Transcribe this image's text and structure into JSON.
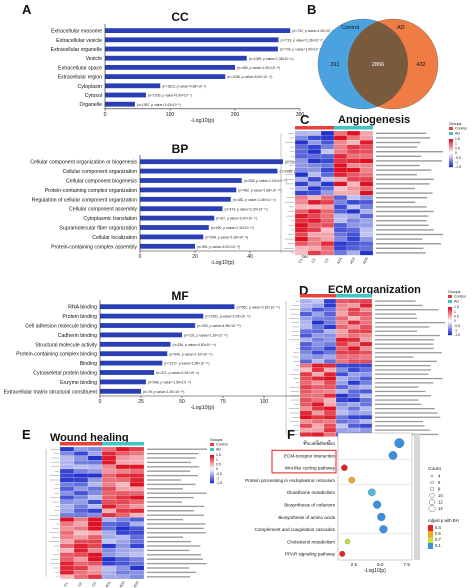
{
  "panels": {
    "A": {
      "letter": "A"
    },
    "B": {
      "letter": "B"
    },
    "C": {
      "letter": "C"
    },
    "D": {
      "letter": "D"
    },
    "E": {
      "letter": "E"
    },
    "F": {
      "letter": "F"
    }
  },
  "chart_data": [
    {
      "type": "bar",
      "id": "cc",
      "title": "CC",
      "xlabel": "-Log10(p)",
      "xlim": [
        0,
        300
      ],
      "xticks": [
        0,
        100,
        200,
        300
      ],
      "categories": [
        "Extracellular exosome",
        "Extracellular vesicle",
        "Extracellular organelle",
        "Vesicle",
        "Extracellular space",
        "Extracellular region",
        "Cytoplasm",
        "Cytosol",
        "Organelle"
      ],
      "values": [
        285,
        267,
        266,
        218,
        200,
        185,
        85,
        63,
        46
      ],
      "annotations": [
        "(n=732, p value=1.00×10⁻²⁸)",
        "(n=733, p value=1.28×10⁻²⁷)",
        "(n=733, p value=1.00×10⁻²⁶)",
        "(n=1069, p value=1.38×10⁻²¹)",
        "(n=466, p value=1.00×10⁻²⁰)",
        "(n=1036, p value=9.00×10⁻¹⁹)",
        "(n=1813, p value=4.38×10⁻⁹)",
        "(n=1039, p value=6.00×10⁻⁷)",
        "(n=1957, p value=3.43×10⁻⁵)"
      ]
    },
    {
      "type": "bar",
      "id": "bp",
      "title": "BP",
      "xlabel": "-Log10(p)",
      "xlim": [
        0,
        60
      ],
      "xticks": [
        0,
        20,
        40,
        60
      ],
      "categories": [
        "Cellular component organization or biogenesis",
        "Cellular component organization",
        "Cellular component biogenesis",
        "Protein-containing complex organization",
        "Regulation of cellular component organization",
        "Cellular component assembly",
        "Cytoplasmic translation",
        "Supramolecular fiber organization",
        "Cellular localization",
        "Protein-containing complex assembly"
      ],
      "values": [
        52,
        50,
        37,
        35,
        33,
        30,
        27,
        25,
        23,
        20
      ],
      "annotations": [
        "(n=1025, p value=4.20×10⁻⁵²)",
        "(n=1088, p value=1.40×10⁻⁵⁰)",
        "(n=535, p value=1.20×10⁻³⁷)",
        "(n=462, p value=1.86×10⁻³⁵)",
        "(n=482, p value=1.36×10⁻³³)",
        "(n=474, p value=2.20×10⁻³⁰)",
        "(n=87, p value=6.97×10⁻²⁷)",
        "(n=260, p value=2.30×10⁻²⁵)",
        "(n=548, p value=1.36×10⁻²³)",
        "(n=391, p value=2.02×10⁻²⁰)"
      ]
    },
    {
      "type": "bar",
      "id": "mf",
      "title": "MF",
      "xlabel": "-Log10(p)",
      "xlim": [
        0,
        125
      ],
      "xticks": [
        0,
        25,
        50,
        75,
        100,
        125
      ],
      "categories": [
        "RNA binding",
        "Protein binding",
        "Cell adhesion molecule binding",
        "Cadherin binding",
        "Structural molecule activity",
        "Protein-containing complex binding",
        "Binding",
        "Cytoskeletal protein binding",
        "Enzyme binding",
        "Extracellular matrix structural constituent"
      ],
      "values": [
        82,
        63,
        58,
        50,
        43,
        41,
        38,
        33,
        28,
        25
      ],
      "annotations": [
        "(n=562, p value=2.82×10⁻⁸²)",
        "(n=1951, p value=2.34×10⁻⁶³)",
        "(n=330, p value=4.96×10⁻⁵⁸)",
        "(n=231, p value=1.16×10⁻⁵⁰)",
        "(n=336, p value=4.50×10⁻⁴³)",
        "(n=540, p value=1.10×10⁻⁴¹)",
        "(n=1017, p value=1.58×10⁻³⁸)",
        "(n=371, p value=2.39×10⁻³³)",
        "(n=548, p value=1.50×10⁻²⁸)",
        "(n=76, p value=1.30×10⁻²⁵)"
      ]
    },
    {
      "type": "venn",
      "id": "venn",
      "sets": [
        {
          "name": "Control",
          "only": 311,
          "color": "#4aa3df"
        },
        {
          "name": "AD",
          "only": 432,
          "color": "#ef7c45"
        }
      ],
      "intersection": 2866
    },
    {
      "type": "heatmap",
      "id": "angiogenesis",
      "title": "Angiogenesis",
      "rows": 27,
      "columns": [
        "C1",
        "C2",
        "C3",
        "AD1",
        "AD2",
        "AD3"
      ],
      "legend_title": "Groups",
      "groups": [
        "Control",
        "AD"
      ],
      "color_scale": {
        "low": "#2233cc",
        "mid": "#ffffff",
        "high": "#dd1122",
        "ticks": [
          "1.5",
          "1",
          "0.5",
          "0",
          "-0.5",
          "-1",
          "-1.5"
        ]
      }
    },
    {
      "type": "heatmap",
      "id": "ecm",
      "title": "ECM organization",
      "rows": 32,
      "columns": [
        "C1",
        "C2",
        "C3",
        "AD1",
        "AD2",
        "AD3"
      ],
      "legend_title": "Groups",
      "groups": [
        "Control",
        "AD"
      ],
      "color_scale": {
        "low": "#2233cc",
        "mid": "#ffffff",
        "high": "#dd1122",
        "ticks": [
          "1.5",
          "1",
          "0.5",
          "0",
          "-0.5",
          "-1",
          "-1.5"
        ]
      }
    },
    {
      "type": "heatmap",
      "id": "wound",
      "title": "Wound healing",
      "rows": 30,
      "columns": [
        "C1",
        "C2",
        "C3",
        "AD1",
        "AD2",
        "AD3"
      ],
      "legend_title": "Groups",
      "groups": [
        "Control",
        "AD"
      ],
      "color_scale": {
        "low": "#2233cc",
        "mid": "#ffffff",
        "high": "#dd1122",
        "ticks": [
          "1.5",
          "1",
          "0.5",
          "0",
          "-0.5",
          "-1",
          "-1.5"
        ]
      }
    },
    {
      "type": "scatter",
      "id": "kegg",
      "xlabel": "-Log10(p)",
      "xlim": [
        1,
        8
      ],
      "xticks": [
        "2.5",
        "5.0",
        "7.5"
      ],
      "categories": [
        "Focal adhesion",
        "ECM-receptor interaction",
        "Wnt-like cycling pathway",
        "Protein processing in endoplasmic reticulum",
        "Glutathione metabolism",
        "Biosynthesis of cofactors",
        "Biosynthesis of amino acids",
        "Complement and coagulation cascades",
        "Cholesterol metabolism",
        "PPAR signaling pathway"
      ],
      "highlighted": [
        "ECM-receptor interaction",
        "Wnt-like cycling pathway"
      ],
      "points": [
        {
          "label": "Focal adhesion",
          "x": 6.8,
          "count": 12,
          "padj": 0.1
        },
        {
          "label": "ECM-receptor interaction",
          "x": 6.2,
          "count": 10,
          "padj": 0.1
        },
        {
          "label": "Wnt-like cycling pathway",
          "x": 1.6,
          "count": 6,
          "padj": 0.8
        },
        {
          "label": "Protein processing in endoplasmic reticulum",
          "x": 2.3,
          "count": 6,
          "padj": 0.6
        },
        {
          "label": "Glutathione metabolism",
          "x": 4.2,
          "count": 8,
          "padj": 0.15
        },
        {
          "label": "Biosynthesis of cofactors",
          "x": 4.7,
          "count": 9,
          "padj": 0.1
        },
        {
          "label": "Biosynthesis of amino acids",
          "x": 5.1,
          "count": 9,
          "padj": 0.1
        },
        {
          "label": "Complement and coagulation cascades",
          "x": 5.3,
          "count": 9,
          "padj": 0.1
        },
        {
          "label": "Cholesterol metabolism",
          "x": 1.9,
          "count": 4,
          "padj": 0.4
        },
        {
          "label": "PPAR signaling pathway",
          "x": 1.4,
          "count": 5,
          "padj": 0.8
        }
      ],
      "legend": {
        "count_title": "Count",
        "count_values": [
          "4",
          "6",
          "8",
          "10",
          "12",
          "14"
        ],
        "color_title": "Adjust p with BH",
        "color_values": [
          "0.4",
          "0.5",
          "0.7",
          "0.1"
        ],
        "color_scale": [
          "#e62020",
          "#f5a623",
          "#c6e03a",
          "#3b8fe0"
        ]
      }
    }
  ]
}
